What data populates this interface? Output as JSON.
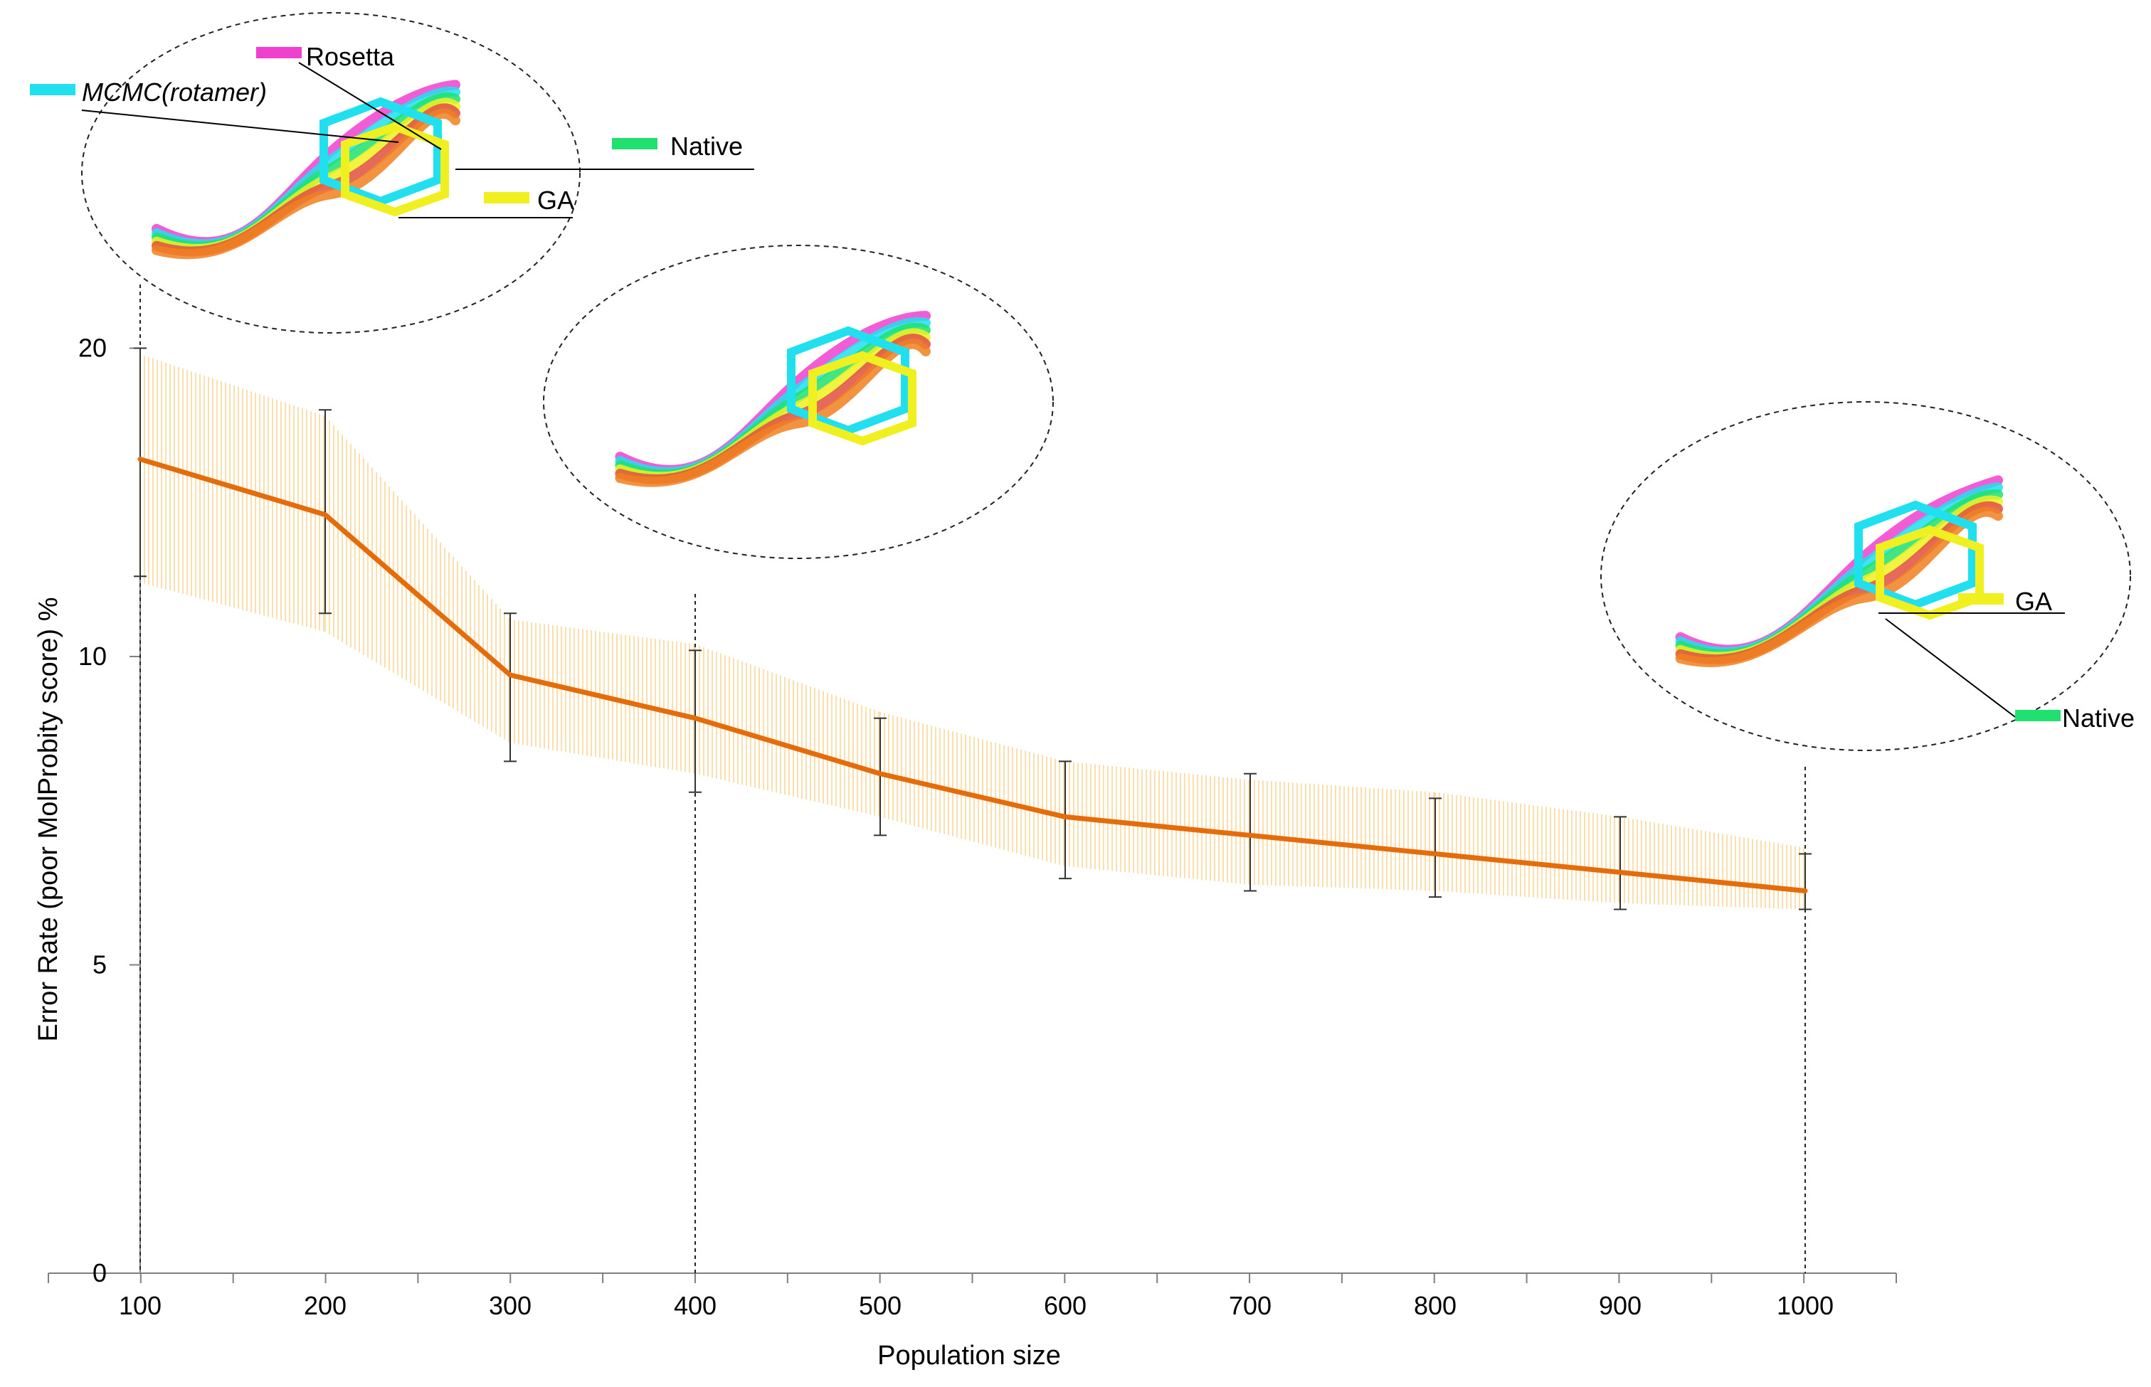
{
  "chart_data": {
    "type": "line",
    "title": "",
    "xlabel": "Population size",
    "ylabel": "Error Rate (poor MolProbity score) %",
    "x": [
      100,
      200,
      300,
      400,
      500,
      600,
      700,
      800,
      900,
      1000
    ],
    "x_tick_labels": [
      "100",
      "200",
      "300",
      "400",
      "500",
      "600",
      "700",
      "800",
      "900",
      "1000"
    ],
    "y_ticks": [
      0,
      5,
      10,
      20
    ],
    "y_tick_labels": [
      "0",
      "5",
      "10",
      "20"
    ],
    "y_scale": "custom (20 placed at the height where 15 would fall on a linear scale)",
    "grid": false,
    "series": [
      {
        "values": [
          13.2,
          12.3,
          9.7,
          9.0,
          8.1,
          7.4,
          7.1,
          6.8,
          6.5,
          6.2
        ],
        "error_low": [
          11.3,
          10.7,
          8.3,
          7.8,
          7.1,
          6.4,
          6.2,
          6.1,
          5.9,
          5.9
        ],
        "error_high": [
          15.0,
          14.0,
          10.7,
          10.1,
          9.0,
          8.3,
          8.1,
          7.7,
          7.4,
          6.8
        ],
        "band_low": [
          11.2,
          10.4,
          8.6,
          8.1,
          7.4,
          6.6,
          6.3,
          6.2,
          6.0,
          5.9
        ],
        "band_high": [
          14.9,
          13.9,
          10.6,
          10.2,
          9.1,
          8.3,
          8.0,
          7.8,
          7.4,
          6.9
        ],
        "color": "#E46C0A",
        "band_color": "#F5C46A"
      }
    ],
    "callouts": [
      {
        "at_x": 100,
        "labels": [
          {
            "text": "Rosetta",
            "color": "#F040D0"
          },
          {
            "text": "MCMC(rotamer)",
            "color": "#20E0F0"
          },
          {
            "text": "Native",
            "color": "#20E070"
          },
          {
            "text": "GA",
            "color": "#F0F020"
          }
        ]
      },
      {
        "at_x": 400,
        "labels": []
      },
      {
        "at_x": 1000,
        "labels": [
          {
            "text": "GA",
            "color": "#F0F020"
          },
          {
            "text": "Native",
            "color": "#20E070"
          }
        ]
      }
    ]
  }
}
